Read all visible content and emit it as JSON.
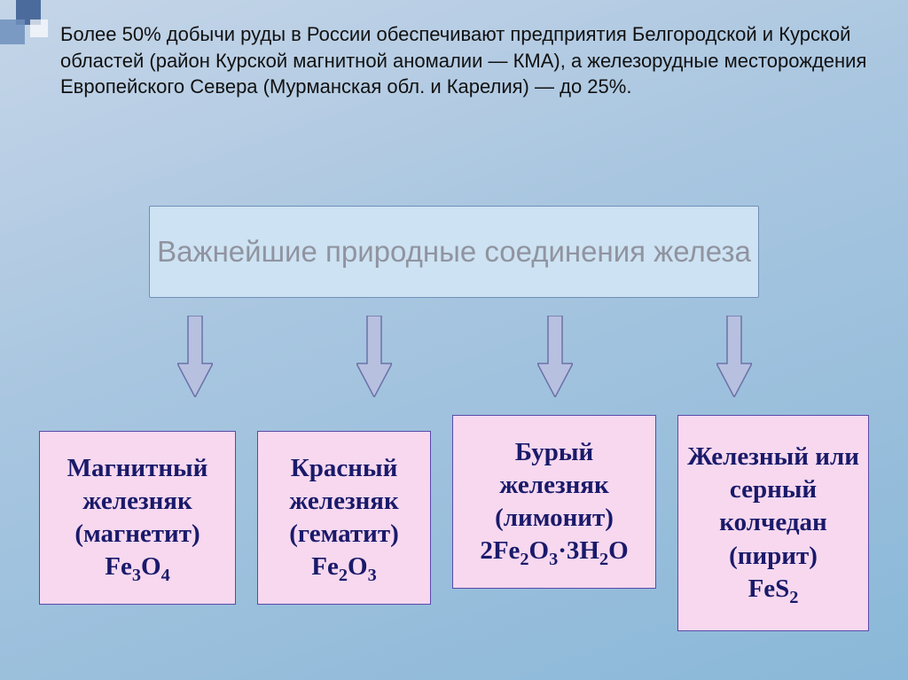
{
  "colors": {
    "bg_gradient_from": "#c5d5e8",
    "bg_gradient_to": "#8ab8d8",
    "header_fill": "#cde2f2",
    "header_border": "#6f8fb8",
    "header_text": "#9094a0",
    "leaf_fill": "#f7d8ef",
    "leaf_border": "#5a4aa8",
    "leaf_text": "#1a1a6a",
    "arrow_fill": "#b8c0e0",
    "arrow_stroke": "#6a72a8",
    "paragraph_text": "#111111"
  },
  "typography": {
    "paragraph_font": "Arial",
    "paragraph_size_pt": 16,
    "header_size_pt": 25,
    "leaf_font": "Times New Roman",
    "leaf_size_pt": 22,
    "leaf_weight": "bold"
  },
  "paragraph": "Более 50% добычи руды в России обеспечивают предприятия Белгородской и Курской областей (район Курской магнитной аномалии — КМА), а железорудные месторождения Европейского Севера (Мурманская обл. и Карелия) — до 25%.",
  "diagram": {
    "type": "tree",
    "header": "Важнейшие природные соединения железа",
    "arrows": 4,
    "leaves": [
      {
        "name": "Магнитный железняк",
        "alt_name": "магнетит",
        "formula_html": "Fe<sub>3</sub>O<sub>4</sub>"
      },
      {
        "name": "Красный железняк",
        "alt_name": "гематит",
        "formula_html": "Fe<sub>2</sub>O<sub>3</sub>"
      },
      {
        "name": "Бурый железняк",
        "alt_name": "лимонит",
        "formula_html": "2Fe<sub>2</sub>O<sub>3</sub>·3H<sub>2</sub>O"
      },
      {
        "name": "Железный или серный колчедан",
        "alt_name": "пирит",
        "formula_html": "FeS<sub>2</sub>"
      }
    ]
  }
}
